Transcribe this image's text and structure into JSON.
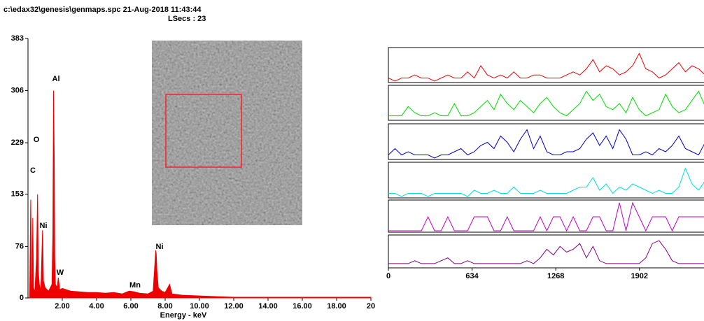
{
  "chart_data": [
    {
      "type": "spectrum",
      "title": "c:\\edax32\\genesis\\genmaps.spc  21-Aug-2018 11:43:44",
      "subtitle": "LSecs : 23",
      "x_label": "Energy - keV",
      "color": "#ee0000",
      "x": [
        0.1,
        0.16,
        0.2,
        0.24,
        0.28,
        0.32,
        0.4,
        0.5,
        0.56,
        0.6,
        0.66,
        0.75,
        0.85,
        0.9,
        1.0,
        1.2,
        1.4,
        1.45,
        1.49,
        1.53,
        1.56,
        1.6,
        1.7,
        1.77,
        1.85,
        2.0,
        2.5,
        3.0,
        3.5,
        4.0,
        4.5,
        5.0,
        5.5,
        5.9,
        6.2,
        6.5,
        7.0,
        7.3,
        7.45,
        7.48,
        7.52,
        7.6,
        7.8,
        8.0,
        8.26,
        8.4,
        9,
        10,
        11,
        12,
        14,
        16,
        18,
        20
      ],
      "values": [
        5,
        145,
        20,
        10,
        118,
        15,
        8,
        60,
        153,
        40,
        20,
        10,
        100,
        25,
        15,
        10,
        20,
        95,
        306,
        208,
        60,
        20,
        15,
        30,
        12,
        14,
        10,
        9,
        8,
        8,
        7,
        8,
        6,
        10,
        9,
        7,
        6,
        10,
        70,
        65,
        40,
        15,
        10,
        8,
        20,
        6,
        4,
        3,
        2,
        1,
        1,
        1,
        1,
        1
      ],
      "xlim": [
        0,
        20
      ],
      "ylim": [
        0,
        383
      ],
      "yticks": [
        0,
        76,
        153,
        229,
        306,
        383
      ],
      "xticks": [
        {
          "value": 2,
          "label": "2.00"
        },
        {
          "value": 4,
          "label": "4.00"
        },
        {
          "value": 6,
          "label": "6.00"
        },
        {
          "value": 8,
          "label": "8.00"
        },
        {
          "value": 10,
          "label": "10.00"
        },
        {
          "value": 12,
          "label": "12.00"
        },
        {
          "value": 14,
          "label": "14.00"
        },
        {
          "value": 16,
          "label": "16.00"
        },
        {
          "value": 18,
          "label": "18.00"
        },
        {
          "value": 20,
          "label": "20"
        }
      ],
      "annotations": [
        "Al",
        "O",
        "C",
        "Ni",
        "W",
        "Mn",
        "Ni"
      ]
    },
    {
      "type": "linescan",
      "x": [
        0,
        50,
        100,
        150,
        200,
        250,
        300,
        350,
        400,
        450,
        500,
        550,
        600,
        650,
        700,
        750,
        800,
        850,
        900,
        950,
        1000,
        1050,
        1100,
        1150,
        1200,
        1250,
        1300,
        1350,
        1400,
        1450,
        1500,
        1550,
        1600,
        1650,
        1700,
        1750,
        1800,
        1850,
        1900,
        1950,
        2000,
        2050,
        2100,
        2150,
        2200,
        2250,
        2300,
        2350,
        2400,
        2450
      ],
      "xlim": [
        0,
        2465
      ],
      "ylim": [
        0,
        10
      ],
      "xticks": [
        0,
        634,
        1268,
        1902
      ],
      "series": [
        {
          "color": "#ee0000",
          "values": [
            1,
            0,
            1,
            1,
            2,
            1,
            1,
            0,
            1,
            2,
            1,
            1,
            3,
            1,
            5,
            2,
            1,
            2,
            1,
            3,
            1,
            1,
            2,
            2,
            1,
            1,
            1,
            2,
            3,
            2,
            4,
            7,
            3,
            5,
            4,
            2,
            3,
            5,
            9,
            4,
            3,
            1,
            2,
            4,
            6,
            3,
            5,
            4,
            2,
            3
          ]
        },
        {
          "color": "#00dd00",
          "values": [
            1,
            1,
            1,
            4,
            2,
            1,
            1,
            2,
            1,
            1,
            5,
            1,
            1,
            2,
            4,
            6,
            3,
            8,
            5,
            3,
            6,
            4,
            2,
            5,
            7,
            4,
            2,
            1,
            3,
            5,
            9,
            6,
            8,
            4,
            3,
            5,
            2,
            7,
            3,
            1,
            2,
            3,
            8,
            4,
            2,
            3,
            6,
            9,
            4,
            2
          ]
        },
        {
          "color": "#0000cc",
          "values": [
            1,
            3,
            1,
            2,
            1,
            1,
            1,
            0,
            1,
            1,
            2,
            3,
            1,
            2,
            4,
            5,
            3,
            7,
            5,
            2,
            6,
            9,
            3,
            7,
            2,
            1,
            1,
            2,
            2,
            3,
            6,
            8,
            4,
            7,
            3,
            9,
            6,
            1,
            1,
            2,
            1,
            3,
            2,
            4,
            7,
            3,
            2,
            1,
            5,
            3
          ]
        },
        {
          "color": "#00dddd",
          "values": [
            1,
            1,
            0,
            1,
            1,
            1,
            0,
            1,
            1,
            1,
            1,
            1,
            0,
            2,
            1,
            1,
            2,
            1,
            1,
            3,
            1,
            1,
            1,
            2,
            1,
            1,
            1,
            1,
            2,
            3,
            3,
            6,
            2,
            4,
            1,
            3,
            2,
            4,
            3,
            2,
            1,
            2,
            1,
            1,
            3,
            9,
            4,
            2,
            5,
            3
          ]
        },
        {
          "color": "#c000c0",
          "values": [
            0,
            0,
            0,
            0,
            0,
            0,
            5,
            0,
            0,
            5,
            0,
            0,
            0,
            5,
            5,
            5,
            0,
            0,
            5,
            0,
            0,
            0,
            0,
            5,
            0,
            5,
            5,
            0,
            5,
            0,
            0,
            5,
            5,
            0,
            0,
            10,
            0,
            10,
            5,
            0,
            5,
            5,
            5,
            0,
            5,
            5,
            5,
            5,
            5,
            5
          ]
        },
        {
          "color": "#800080",
          "values": [
            1,
            1,
            1,
            1,
            2,
            1,
            1,
            1,
            2,
            3,
            1,
            1,
            2,
            1,
            1,
            1,
            1,
            1,
            1,
            1,
            1,
            2,
            1,
            3,
            6,
            4,
            7,
            5,
            6,
            8,
            3,
            7,
            2,
            1,
            1,
            1,
            1,
            1,
            1,
            3,
            8,
            9,
            6,
            2,
            1,
            1,
            1,
            1,
            1,
            2
          ]
        }
      ]
    }
  ]
}
